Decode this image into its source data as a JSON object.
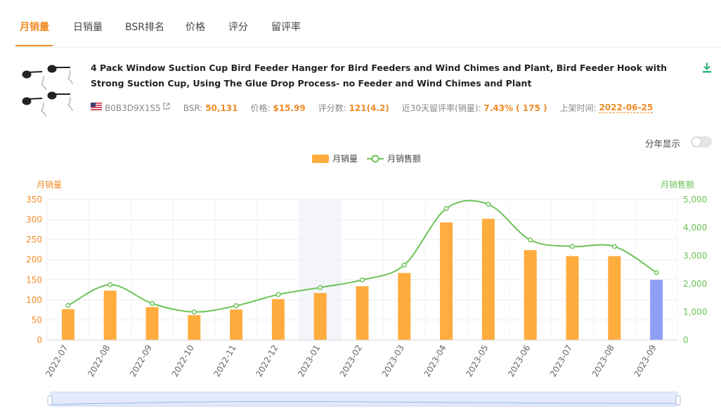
{
  "tabs": [
    {
      "label": "月销量",
      "active": true
    },
    {
      "label": "日销量",
      "active": false
    },
    {
      "label": "BSR排名",
      "active": false
    },
    {
      "label": "价格",
      "active": false
    },
    {
      "label": "评分",
      "active": false
    },
    {
      "label": "留评率",
      "active": false
    }
  ],
  "product": {
    "title": "4 Pack Window Suction Cup Bird Feeder Hanger for Bird Feeders and Wind Chimes and Plant, Bird Feeder Hook with Strong Suction Cup, Using The Glue Drop Process- no Feeder and Wind Chimes and Plant",
    "asin": "B0B3D9X1S5",
    "bsr_label": "BSR:",
    "bsr_value": "50,131",
    "price_label": "价格:",
    "price_value": "$15.99",
    "reviews_label": "评分数:",
    "reviews_value": "121(4.2)",
    "review_rate_label": "近30天留评率(销量):",
    "review_rate_value": "7.43% ( 175 )",
    "listed_label": "上架时间:",
    "listed_value": "2022-06-25"
  },
  "controls": {
    "year_toggle_label": "分年显示",
    "year_toggle_on": false
  },
  "colors": {
    "accent": "#f08a24",
    "bar": "#ffac3e",
    "bar_highlight": "#8ea0f5",
    "line": "#6cc257",
    "grid": "#eeeeee"
  },
  "chart_data": {
    "type": "bar",
    "categories": [
      "2022-07",
      "2022-08",
      "2022-09",
      "2022-10",
      "2022-11",
      "2022-12",
      "2023-01",
      "2023-02",
      "2023-03",
      "2023-04",
      "2023-05",
      "2023-06",
      "2023-07",
      "2023-08",
      "2023-09"
    ],
    "series": [
      {
        "name": "月销量",
        "type": "bar",
        "axis": "left",
        "values": [
          77,
          123,
          82,
          62,
          76,
          102,
          117,
          134,
          167,
          293,
          302,
          224,
          209,
          209,
          150
        ]
      },
      {
        "name": "月销售额",
        "type": "line",
        "axis": "right",
        "values": [
          1230,
          1970,
          1300,
          1000,
          1220,
          1620,
          1870,
          2140,
          2670,
          4680,
          4830,
          3560,
          3330,
          3330,
          2400
        ]
      }
    ],
    "highlighted_category": "2023-01",
    "highlighted_bar": "2023-09",
    "ylabel_left": "月销量",
    "ylabel_right": "月销售额",
    "ylim_left": [
      0,
      350
    ],
    "yticks_left": [
      "0",
      "50",
      "100",
      "150",
      "200",
      "250",
      "300",
      "350"
    ],
    "ylim_right": [
      0,
      5000
    ],
    "yticks_right": [
      "0",
      "1,000",
      "2,000",
      "3,000",
      "4,000",
      "5,000"
    ],
    "legend": [
      {
        "name": "月销量",
        "shape": "bar"
      },
      {
        "name": "月销售额",
        "shape": "line"
      }
    ],
    "legend_position": "top-center",
    "grid": true
  }
}
